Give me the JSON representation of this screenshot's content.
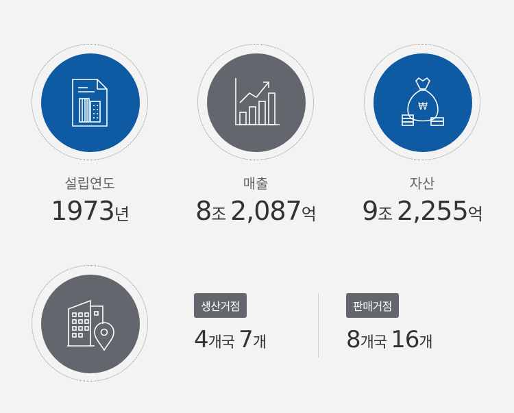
{
  "stats": [
    {
      "label": "설립연도",
      "parts": [
        {
          "num": "1973",
          "unit": "년"
        }
      ]
    },
    {
      "label": "매출",
      "parts": [
        {
          "num": "8",
          "unit": "조 "
        },
        {
          "num": "2,087",
          "unit": "억"
        }
      ]
    },
    {
      "label": "자산",
      "parts": [
        {
          "num": "9",
          "unit": "조 "
        },
        {
          "num": "2,255",
          "unit": "억"
        }
      ]
    }
  ],
  "network": {
    "production": {
      "badge": "생산거점",
      "countries": "4",
      "country_unit": "개국 ",
      "sites": "7",
      "site_unit": "개"
    },
    "sales": {
      "badge": "판매거점",
      "countries": "8",
      "country_unit": "개국 ",
      "sites": "16",
      "site_unit": "개"
    }
  },
  "icons": [
    "document-building-icon",
    "growth-chart-icon",
    "money-bag-icon",
    "building-location-icon"
  ],
  "colors": {
    "blue": "#0f5ba3",
    "gray": "#63676d",
    "background": "#f3f3f3"
  }
}
